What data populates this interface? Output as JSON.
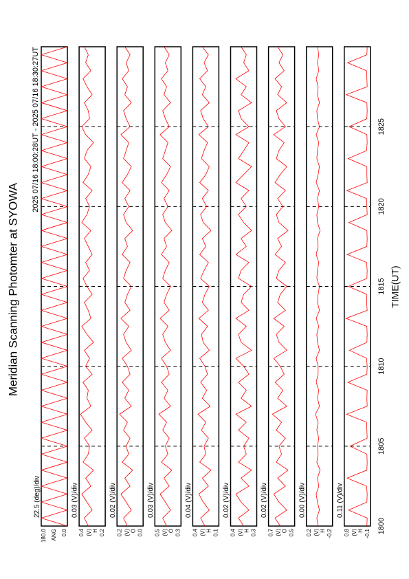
{
  "chart_data": {
    "type": "line",
    "title": "Meridian Scanning Photomter at SYOWA",
    "subtitle": "2025 07/16 18:00:28UT - 2025 07/16 18:30:27UT",
    "xlabel": "TIME(UT)",
    "xlim": [
      0,
      30
    ],
    "xticks": [
      {
        "value": 0,
        "label": "1800"
      },
      {
        "value": 5,
        "label": "1805"
      },
      {
        "value": 10,
        "label": "1810"
      },
      {
        "value": 15,
        "label": "1815"
      },
      {
        "value": 20,
        "label": "1820"
      },
      {
        "value": 25,
        "label": "1825"
      }
    ],
    "grid": true,
    "x": [
      0,
      0.5,
      1,
      1.5,
      2,
      2.5,
      3,
      3.5,
      4,
      4.5,
      5,
      5.5,
      6,
      6.5,
      7,
      7.5,
      8,
      8.5,
      9,
      9.5,
      10,
      10.5,
      11,
      11.5,
      12,
      12.5,
      13,
      13.5,
      14,
      14.5,
      15,
      15.5,
      16,
      16.5,
      17,
      17.5,
      18,
      18.5,
      19,
      19.5,
      20,
      20.5,
      21,
      21.5,
      22,
      22.5,
      23,
      23.5,
      24,
      24.5,
      25,
      25.5,
      26,
      26.5,
      27,
      27.5,
      28,
      28.5,
      29,
      29.5,
      30
    ],
    "panels": [
      {
        "scale_label": "22.5 (deg)/div",
        "ylabel": "ANG",
        "color": "#ff0000",
        "ylim": [
          0,
          180
        ],
        "yticks": [
          {
            "value": 180,
            "label": "180.0"
          },
          {
            "value": 0,
            "label": "0.0"
          }
        ],
        "values": [
          0,
          180,
          0,
          180,
          0,
          180,
          0,
          180,
          0,
          180,
          0,
          180,
          0,
          180,
          0,
          180,
          0,
          180,
          0,
          180,
          0,
          180,
          0,
          180,
          0,
          180,
          0,
          180,
          0,
          180,
          0,
          180,
          0,
          180,
          0,
          180,
          0,
          180,
          0,
          180,
          0,
          180,
          0,
          180,
          0,
          180,
          0,
          180,
          0,
          180,
          0,
          180,
          0,
          180,
          0,
          180,
          0,
          180,
          0,
          180,
          0
        ]
      },
      {
        "scale_label": "0.03 (V)/div",
        "ylabel": "(V)",
        "channel": "H",
        "color": "#ff0000",
        "ylim": [
          0.2,
          0.4
        ],
        "yticks": [
          0.4,
          0.2
        ],
        "values": [
          0.33,
          0.36,
          0.3,
          0.34,
          0.38,
          0.31,
          0.35,
          0.29,
          0.37,
          0.33,
          0.32,
          0.36,
          0.3,
          0.35,
          0.39,
          0.31,
          0.34,
          0.33,
          0.37,
          0.3,
          0.35,
          0.32,
          0.36,
          0.29,
          0.34,
          0.38,
          0.31,
          0.33,
          0.36,
          0.3,
          0.34,
          0.37,
          0.32,
          0.35,
          0.3,
          0.33,
          0.36,
          0.31,
          0.38,
          0.34,
          0.32,
          0.35,
          0.3,
          0.37,
          0.33,
          0.31,
          0.36,
          0.34,
          0.29,
          0.35,
          0.38,
          0.32,
          0.33,
          0.36,
          0.3,
          0.34,
          0.37,
          0.31,
          0.35,
          0.33,
          0.36
        ]
      },
      {
        "scale_label": "0.02 (V)/div",
        "ylabel": "(V)",
        "channel": "O",
        "color": "#ff0000",
        "ylim": [
          0,
          0.2
        ],
        "yticks": [
          0.2,
          {
            "value": 0,
            "label": "0.0"
          }
        ],
        "values": [
          0.12,
          0.15,
          0.09,
          0.13,
          0.17,
          0.1,
          0.14,
          0.08,
          0.16,
          0.11,
          0.13,
          0.1,
          0.15,
          0.12,
          0.18,
          0.09,
          0.14,
          0.11,
          0.16,
          0.1,
          0.12,
          0.16,
          0.09,
          0.13,
          0.15,
          0.11,
          0.17,
          0.1,
          0.14,
          0.12,
          0.09,
          0.15,
          0.13,
          0.1,
          0.16,
          0.12,
          0.14,
          0.08,
          0.13,
          0.15,
          0.11,
          0.14,
          0.1,
          0.16,
          0.12,
          0.09,
          0.15,
          0.13,
          0.11,
          0.17,
          0.1,
          0.13,
          0.15,
          0.09,
          0.14,
          0.12,
          0.16,
          0.11,
          0.13,
          0.1,
          0.14
        ]
      },
      {
        "scale_label": "0.03 (V)/div",
        "ylabel": "(V)",
        "channel": "O",
        "color": "#ff0000",
        "ylim": [
          0.3,
          0.5
        ],
        "yticks": [
          0.5,
          0.3
        ],
        "values": [
          0.41,
          0.44,
          0.38,
          0.42,
          0.46,
          0.39,
          0.43,
          0.37,
          0.45,
          0.4,
          0.42,
          0.39,
          0.44,
          0.41,
          0.47,
          0.38,
          0.43,
          0.4,
          0.45,
          0.39,
          0.41,
          0.45,
          0.38,
          0.42,
          0.44,
          0.4,
          0.46,
          0.39,
          0.43,
          0.41,
          0.38,
          0.44,
          0.42,
          0.39,
          0.45,
          0.41,
          0.43,
          0.37,
          0.42,
          0.44,
          0.4,
          0.43,
          0.39,
          0.45,
          0.41,
          0.38,
          0.44,
          0.42,
          0.4,
          0.46,
          0.39,
          0.42,
          0.44,
          0.38,
          0.43,
          0.41,
          0.45,
          0.4,
          0.42,
          0.39,
          0.43
        ]
      },
      {
        "scale_label": "0.04 (V)/div",
        "ylabel": "(V)",
        "channel": "H",
        "color": "#ff0000",
        "ylim": [
          0.1,
          0.4
        ],
        "yticks": [
          0.4,
          0.1
        ],
        "values": [
          0.26,
          0.31,
          0.21,
          0.28,
          0.33,
          0.22,
          0.29,
          0.19,
          0.32,
          0.25,
          0.27,
          0.22,
          0.3,
          0.25,
          0.34,
          0.2,
          0.29,
          0.24,
          0.31,
          0.23,
          0.26,
          0.32,
          0.21,
          0.28,
          0.3,
          0.23,
          0.33,
          0.22,
          0.29,
          0.26,
          0.21,
          0.31,
          0.27,
          0.22,
          0.32,
          0.25,
          0.29,
          0.19,
          0.28,
          0.31,
          0.24,
          0.29,
          0.22,
          0.32,
          0.25,
          0.21,
          0.3,
          0.27,
          0.23,
          0.33,
          0.22,
          0.28,
          0.31,
          0.21,
          0.29,
          0.25,
          0.32,
          0.23,
          0.27,
          0.22,
          0.29
        ]
      },
      {
        "scale_label": "0.02 (V)/div",
        "ylabel": "(V)",
        "channel": "H",
        "color": "#ff0000",
        "ylim": [
          0.3,
          0.4
        ],
        "yticks": [
          0.4,
          0.3
        ],
        "values": [
          0.35,
          0.37,
          0.33,
          0.36,
          0.38,
          0.33,
          0.36,
          0.32,
          0.37,
          0.34,
          0.35,
          0.33,
          0.37,
          0.34,
          0.38,
          0.32,
          0.36,
          0.34,
          0.37,
          0.33,
          0.35,
          0.38,
          0.32,
          0.36,
          0.37,
          0.34,
          0.38,
          0.33,
          0.36,
          0.35,
          0.32,
          0.37,
          0.36,
          0.33,
          0.38,
          0.34,
          0.36,
          0.32,
          0.35,
          0.37,
          0.34,
          0.36,
          0.33,
          0.38,
          0.35,
          0.32,
          0.37,
          0.35,
          0.33,
          0.38,
          0.33,
          0.36,
          0.37,
          0.32,
          0.36,
          0.34,
          0.38,
          0.33,
          0.35,
          0.34,
          0.36
        ]
      },
      {
        "scale_label": "0.02 (V)/div",
        "ylabel": "(V)",
        "channel": "O",
        "color": "#ff0000",
        "ylim": [
          0.5,
          0.7
        ],
        "yticks": [
          0.7,
          0.5
        ],
        "values": [
          0.61,
          0.65,
          0.56,
          0.62,
          0.66,
          0.57,
          0.63,
          0.55,
          0.64,
          0.6,
          0.62,
          0.57,
          0.64,
          0.6,
          0.67,
          0.56,
          0.63,
          0.59,
          0.65,
          0.58,
          0.61,
          0.66,
          0.56,
          0.62,
          0.64,
          0.58,
          0.66,
          0.57,
          0.63,
          0.61,
          0.56,
          0.64,
          0.62,
          0.57,
          0.65,
          0.6,
          0.63,
          0.55,
          0.62,
          0.64,
          0.59,
          0.63,
          0.57,
          0.65,
          0.61,
          0.56,
          0.64,
          0.62,
          0.58,
          0.66,
          0.57,
          0.62,
          0.64,
          0.56,
          0.63,
          0.6,
          0.65,
          0.58,
          0.62,
          0.59,
          0.63
        ]
      },
      {
        "scale_label": "0.00 (V)/div",
        "ylabel": "(V)",
        "channel": "H",
        "color": "#ff0000",
        "ylim": [
          -0.2,
          0.2
        ],
        "yticks": [
          0.2,
          -0.2
        ],
        "values": [
          0.02,
          0.04,
          0.0,
          0.03,
          0.05,
          0.01,
          0.03,
          -0.01,
          0.04,
          0.02,
          0.03,
          0.01,
          0.04,
          0.02,
          0.06,
          0.0,
          0.03,
          0.01,
          0.05,
          0.02,
          0.02,
          0.05,
          0.0,
          0.03,
          0.04,
          0.01,
          0.05,
          0.0,
          0.03,
          0.02,
          0.0,
          0.04,
          0.03,
          0.01,
          0.05,
          0.02,
          0.03,
          -0.01,
          0.03,
          0.04,
          0.01,
          0.03,
          0.0,
          0.05,
          0.02,
          0.0,
          0.04,
          0.03,
          0.01,
          0.05,
          0.0,
          0.03,
          0.04,
          0.0,
          0.03,
          0.02,
          0.05,
          0.01,
          0.03,
          0.01,
          0.03
        ]
      },
      {
        "scale_label": "0.11 (V)/div",
        "ylabel": "(V)",
        "channel": "H",
        "color": "#ff0000",
        "ylim": [
          -0.1,
          0.8
        ],
        "yticks": [
          0.8,
          -0.1
        ],
        "values": [
          0.02,
          0.01,
          0.65,
          0.02,
          0.01,
          0.03,
          0.7,
          0.02,
          0.01,
          0.02,
          0.6,
          0.01,
          0.02,
          0.03,
          0.72,
          0.01,
          0.02,
          0.01,
          0.68,
          0.02,
          0.01,
          0.03,
          0.62,
          0.02,
          0.01,
          0.02,
          0.74,
          0.01,
          0.03,
          0.02,
          0.66,
          0.02,
          0.01,
          0.03,
          0.7,
          0.02,
          0.01,
          0.02,
          0.64,
          0.01,
          0.02,
          0.03,
          0.71,
          0.01,
          0.02,
          0.02,
          0.67,
          0.03,
          0.01,
          0.02,
          0.63,
          0.02,
          0.01,
          0.02,
          0.73,
          0.01,
          0.02,
          0.03,
          0.69,
          0.02,
          0.01
        ]
      }
    ]
  }
}
